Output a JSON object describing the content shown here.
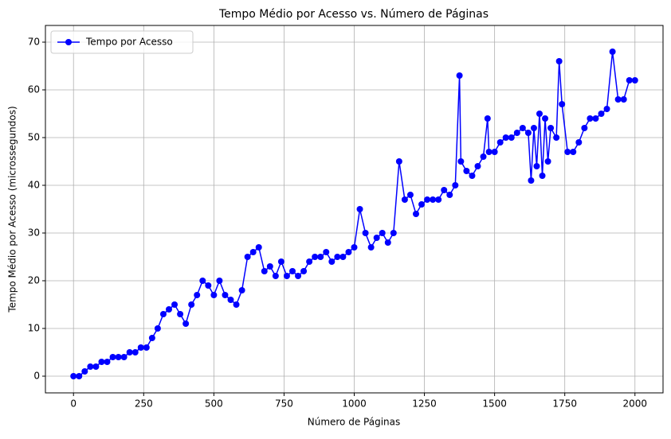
{
  "chart_data": {
    "type": "line",
    "title": "Tempo Médio por Acesso vs. Número de Páginas",
    "xlabel": "Número de Páginas",
    "ylabel": "Tempo Médio por Acesso (microssegundos)",
    "x": [
      0,
      20,
      40,
      60,
      80,
      100,
      120,
      140,
      160,
      180,
      200,
      220,
      240,
      260,
      280,
      300,
      320,
      340,
      360,
      380,
      400,
      420,
      440,
      460,
      480,
      500,
      520,
      540,
      560,
      580,
      600,
      620,
      640,
      660,
      680,
      700,
      720,
      740,
      760,
      780,
      800,
      820,
      840,
      860,
      880,
      900,
      920,
      940,
      960,
      980,
      1000,
      1020,
      1040,
      1060,
      1080,
      1100,
      1120,
      1140,
      1160,
      1180,
      1200,
      1220,
      1240,
      1260,
      1280,
      1300,
      1320,
      1340,
      1360,
      1375,
      1380,
      1400,
      1420,
      1440,
      1460,
      1475,
      1480,
      1500,
      1520,
      1540,
      1560,
      1580,
      1600,
      1620,
      1630,
      1640,
      1650,
      1660,
      1670,
      1680,
      1690,
      1700,
      1720,
      1730,
      1740,
      1760,
      1780,
      1800,
      1820,
      1840,
      1860,
      1880,
      1900,
      1920,
      1940,
      1960,
      1980,
      2000
    ],
    "series": [
      {
        "name": "Tempo por Acesso",
        "color": "#0000ff",
        "values": [
          0,
          0,
          1,
          2,
          2,
          3,
          3,
          4,
          4,
          4,
          5,
          5,
          6,
          6,
          8,
          10,
          13,
          14,
          15,
          13,
          11,
          15,
          17,
          20,
          19,
          17,
          20,
          17,
          16,
          15,
          18,
          25,
          26,
          27,
          22,
          23,
          21,
          24,
          21,
          22,
          21,
          22,
          24,
          25,
          25,
          26,
          24,
          25,
          25,
          26,
          27,
          35,
          30,
          27,
          29,
          30,
          28,
          30,
          45,
          37,
          38,
          34,
          36,
          37,
          37,
          37,
          39,
          38,
          40,
          63,
          45,
          43,
          42,
          44,
          46,
          54,
          47,
          47,
          49,
          50,
          50,
          51,
          52,
          51,
          41,
          52,
          44,
          55,
          42,
          54,
          45,
          52,
          50,
          66,
          57,
          47,
          47,
          49,
          52,
          54,
          54,
          55,
          56,
          68,
          58,
          58,
          62,
          62
        ]
      }
    ],
    "xlim": [
      -100,
      2100
    ],
    "ylim": [
      -3.5,
      73.5
    ],
    "xticks": [
      0,
      250,
      500,
      750,
      1000,
      1250,
      1500,
      1750,
      2000
    ],
    "yticks": [
      0,
      10,
      20,
      30,
      40,
      50,
      60,
      70
    ],
    "grid": true,
    "legend": "upper left"
  }
}
